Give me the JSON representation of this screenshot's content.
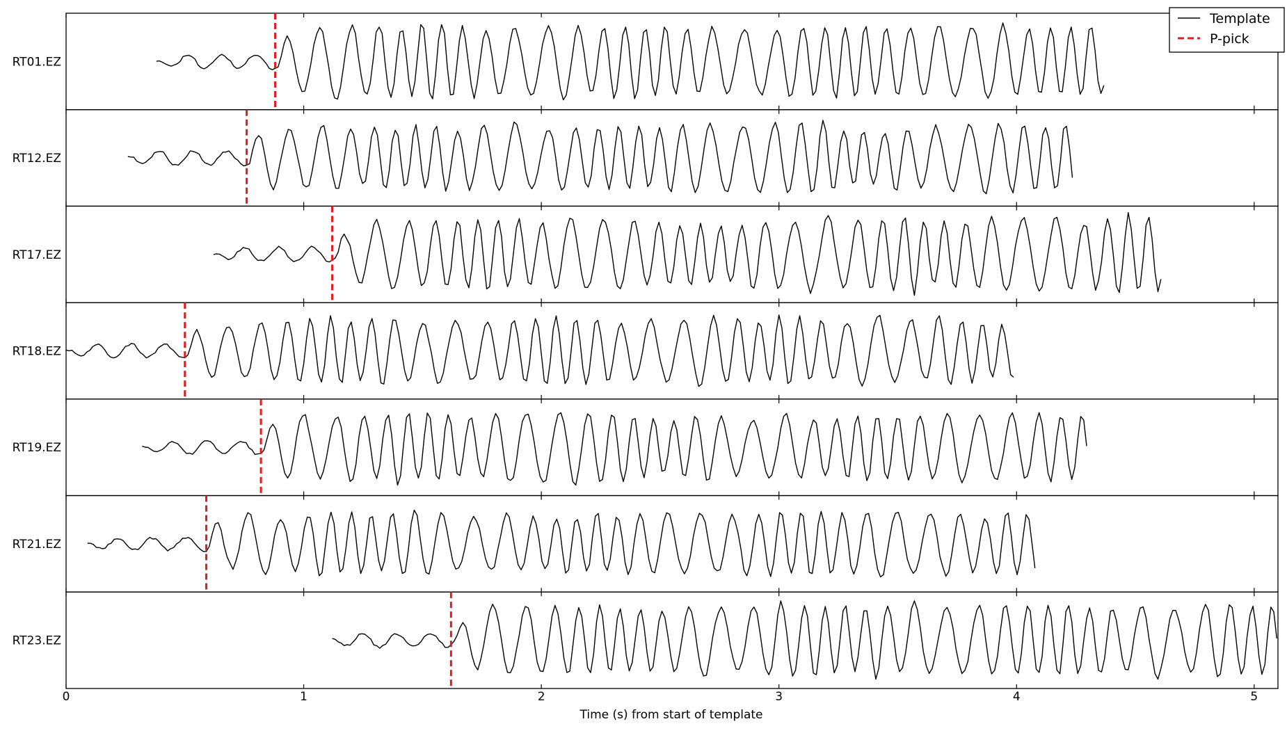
{
  "chart_data": {
    "type": "line",
    "title": "",
    "xlabel": "Time (s) from start of template",
    "ylabel": "",
    "xlim": [
      0,
      5.1
    ],
    "xticks": [
      0,
      1,
      2,
      3,
      4,
      5
    ],
    "grid": false,
    "legend": {
      "placement": "top-right",
      "entries": [
        {
          "label": "Template",
          "style": "solid",
          "color": "#000000"
        },
        {
          "label": "P-pick",
          "style": "dashed",
          "color": "#e41a1c"
        }
      ]
    },
    "series": [
      {
        "station": "RT01.EZ",
        "trace_start": 0.38,
        "trace_end": 4.37,
        "p_pick": 0.88,
        "peak_amplitude": 0.95,
        "seed": 11
      },
      {
        "station": "RT12.EZ",
        "trace_start": 0.26,
        "trace_end": 4.24,
        "p_pick": 0.76,
        "peak_amplitude": 0.92,
        "seed": 23
      },
      {
        "station": "RT17.EZ",
        "trace_start": 0.62,
        "trace_end": 4.61,
        "p_pick": 1.12,
        "peak_amplitude": 0.95,
        "seed": 37
      },
      {
        "station": "RT18.EZ",
        "trace_start": 0.0,
        "trace_end": 3.99,
        "p_pick": 0.5,
        "peak_amplitude": 0.88,
        "seed": 41
      },
      {
        "station": "RT19.EZ",
        "trace_start": 0.32,
        "trace_end": 4.3,
        "p_pick": 0.82,
        "peak_amplitude": 0.9,
        "seed": 53
      },
      {
        "station": "RT21.EZ",
        "trace_start": 0.09,
        "trace_end": 4.08,
        "p_pick": 0.59,
        "peak_amplitude": 0.85,
        "seed": 67
      },
      {
        "station": "RT23.EZ",
        "trace_start": 1.12,
        "trace_end": 5.1,
        "p_pick": 1.62,
        "peak_amplitude": 0.95,
        "seed": 79
      }
    ]
  },
  "colors": {
    "trace": "#000000",
    "pick": "#e41a1c"
  }
}
